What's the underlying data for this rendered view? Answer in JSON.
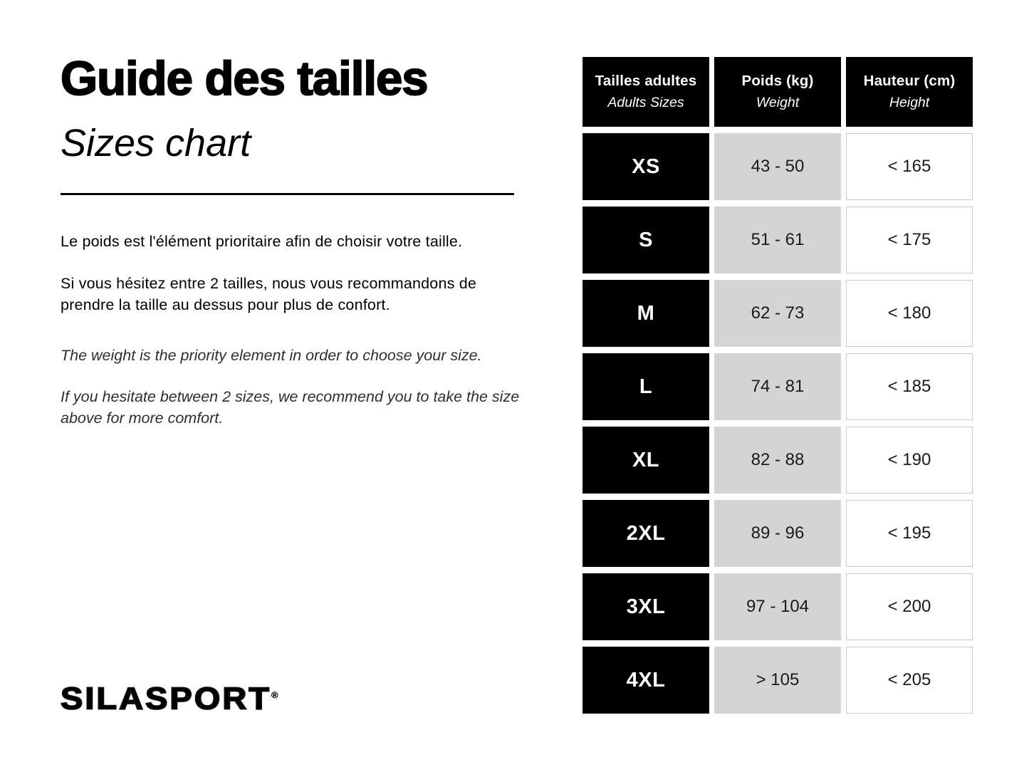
{
  "left": {
    "title": "Guide des tailles",
    "subtitle": "Sizes chart",
    "fr": [
      "Le poids est l'élément prioritaire afin de choisir votre taille.",
      "Si vous hésitez entre 2 tailles, nous vous recommandons de prendre la taille au dessus pour plus de confort."
    ],
    "en": [
      "The weight is the priority element in order to choose your size.",
      "If you hesitate between 2 sizes, we recommend you to take the size above for more comfort."
    ],
    "logo_text": "SILASPORT",
    "logo_reg": "®"
  },
  "colors": {
    "header_bg": "#000000",
    "size_cell_bg": "#000000",
    "weight_cell_bg": "#d4d4d4",
    "height_cell_border": "#c9c9c9",
    "text": "#000000"
  },
  "table": {
    "columns": [
      {
        "label": "Tailles adultes",
        "sublabel": "Adults Sizes"
      },
      {
        "label": "Poids (kg)",
        "sublabel": "Weight"
      },
      {
        "label": "Hauteur (cm)",
        "sublabel": "Height"
      }
    ],
    "rows": [
      {
        "size": "XS",
        "weight": "43 - 50",
        "height": "< 165"
      },
      {
        "size": "S",
        "weight": "51 - 61",
        "height": "< 175"
      },
      {
        "size": "M",
        "weight": "62 - 73",
        "height": "< 180"
      },
      {
        "size": "L",
        "weight": "74 - 81",
        "height": "< 185"
      },
      {
        "size": "XL",
        "weight": "82 - 88",
        "height": "< 190"
      },
      {
        "size": "2XL",
        "weight": "89 - 96",
        "height": "< 195"
      },
      {
        "size": "3XL",
        "weight": "97 - 104",
        "height": "< 200"
      },
      {
        "size": "4XL",
        "weight": "> 105",
        "height": "< 205"
      }
    ]
  },
  "chart_data": {
    "type": "table",
    "title": "Guide des tailles / Sizes chart",
    "columns": [
      "Tailles adultes / Adults Sizes",
      "Poids (kg) / Weight",
      "Hauteur (cm) / Height"
    ],
    "rows": [
      [
        "XS",
        "43 - 50",
        "< 165"
      ],
      [
        "S",
        "51 - 61",
        "< 175"
      ],
      [
        "M",
        "62 - 73",
        "< 180"
      ],
      [
        "L",
        "74 - 81",
        "< 185"
      ],
      [
        "XL",
        "82 - 88",
        "< 190"
      ],
      [
        "2XL",
        "89 - 96",
        "< 195"
      ],
      [
        "3XL",
        "97 - 104",
        "< 200"
      ],
      [
        "4XL",
        "> 105",
        "< 205"
      ]
    ]
  }
}
